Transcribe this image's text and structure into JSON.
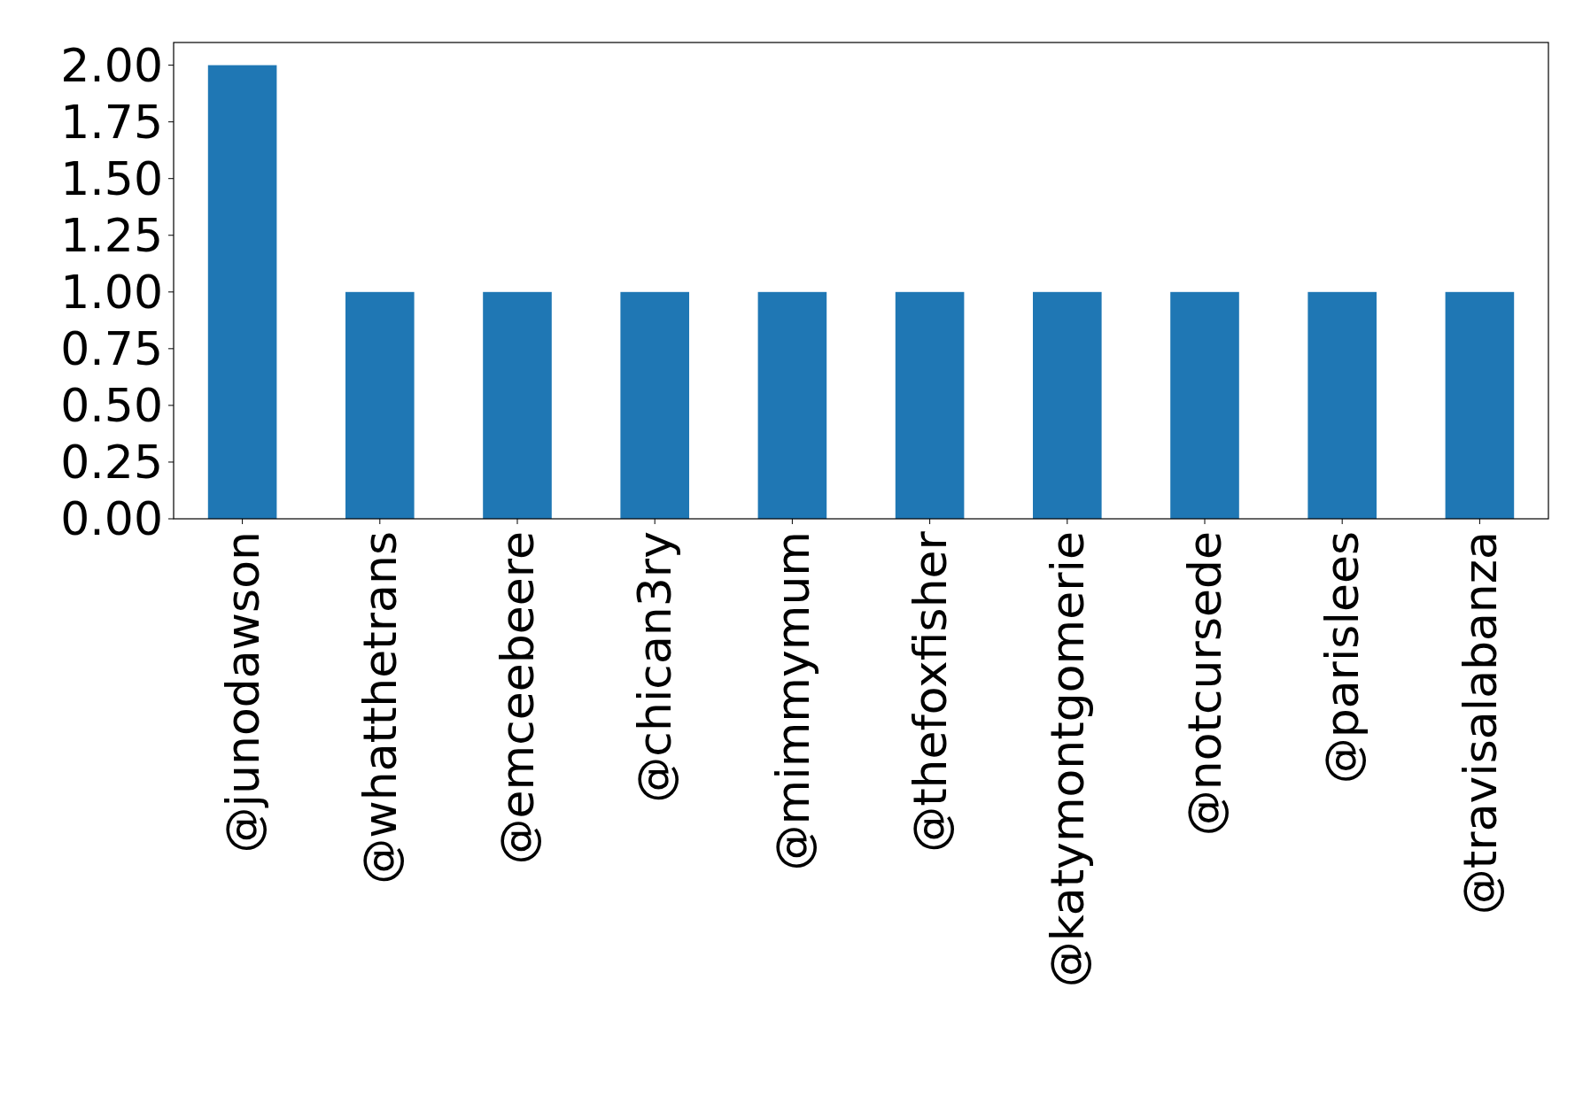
{
  "chart_data": {
    "type": "bar",
    "categories": [
      "@junodawson",
      "@whatthetrans",
      "@emceebeere",
      "@chican3ry",
      "@mimmymum",
      "@thefoxfisher",
      "@katymontgomerie",
      "@notcursede",
      "@parislees",
      "@travisalabanza"
    ],
    "values": [
      2,
      1,
      1,
      1,
      1,
      1,
      1,
      1,
      1,
      1
    ],
    "color": "#1f77b4",
    "ylim": [
      0,
      2.1
    ],
    "yticks": [
      {
        "value": 0,
        "label": "0.00"
      },
      {
        "value": 0.25,
        "label": "0.25"
      },
      {
        "value": 0.5,
        "label": "0.50"
      },
      {
        "value": 0.75,
        "label": "0.75"
      },
      {
        "value": 1,
        "label": "1.00"
      },
      {
        "value": 1.25,
        "label": "1.25"
      },
      {
        "value": 1.5,
        "label": "1.50"
      },
      {
        "value": 1.75,
        "label": "1.75"
      },
      {
        "value": 2,
        "label": "2.00"
      }
    ],
    "grid": false
  }
}
